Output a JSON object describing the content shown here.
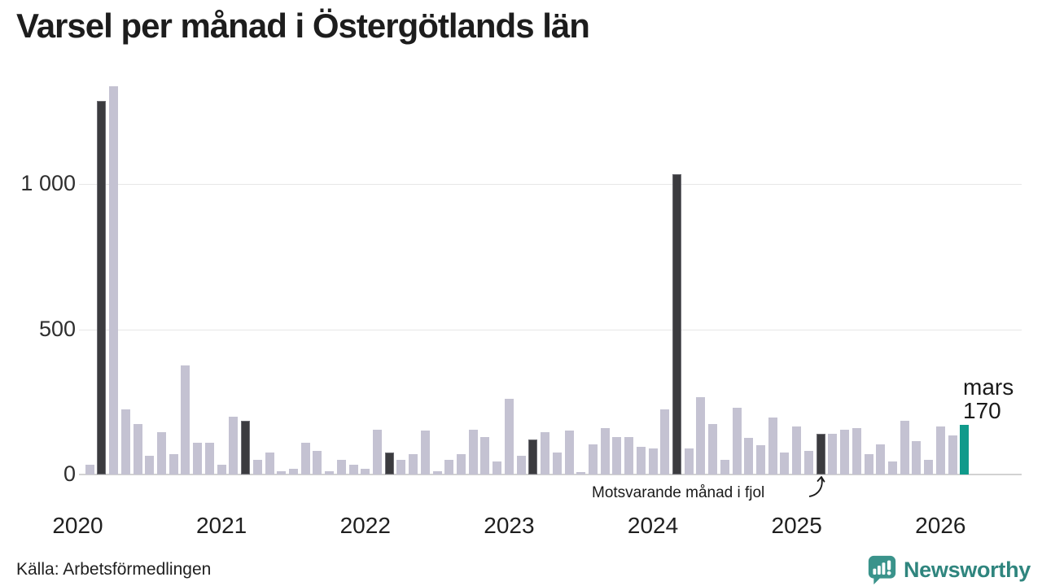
{
  "title": "Varsel per månad i Östergötlands län",
  "annotation": "Motsvarande månad i fjol",
  "current_point_label": {
    "month": "mars",
    "value": "170"
  },
  "footer": {
    "source": "Källa: Arbetsförmedlingen",
    "brand": "Newsworthy"
  },
  "chart_data": {
    "type": "bar",
    "title": "Varsel per månad i Östergötlands län",
    "x_start": "2020-01",
    "x_end": "2026-03",
    "values": [
      0,
      35,
      1285,
      1335,
      225,
      175,
      65,
      145,
      70,
      375,
      110,
      110,
      35,
      200,
      185,
      50,
      75,
      10,
      20,
      110,
      80,
      10,
      50,
      35,
      20,
      155,
      75,
      50,
      70,
      150,
      10,
      50,
      70,
      155,
      130,
      45,
      260,
      65,
      120,
      145,
      75,
      150,
      8,
      105,
      160,
      130,
      130,
      95,
      90,
      225,
      1035,
      90,
      265,
      175,
      50,
      230,
      125,
      100,
      195,
      75,
      165,
      80,
      140,
      140,
      155,
      160,
      70,
      105,
      45,
      185,
      115,
      50,
      165,
      135,
      170
    ],
    "highlight_indices": [
      2,
      14,
      26,
      38,
      50,
      62
    ],
    "highlight_meaning": "Motsvarande månad i fjol",
    "current_index": 74,
    "current_month": "mars",
    "current_value": 170,
    "y_tick_values": [
      0,
      500,
      1000
    ],
    "y_tick_labels": [
      "0",
      "500",
      "1 000"
    ],
    "x_tick_labels": [
      "2020",
      "2021",
      "2022",
      "2023",
      "2024",
      "2025",
      "2026"
    ],
    "ylim": [
      0,
      1400
    ],
    "legend_position": "none",
    "grid": "horizontal",
    "colors": {
      "bar": "#c4c2d2",
      "highlight": "#3b3b3f",
      "current": "#109a8b",
      "grid": "#e6e6e6",
      "axis": "#d2d2d2",
      "brand": "#2f857e"
    }
  }
}
